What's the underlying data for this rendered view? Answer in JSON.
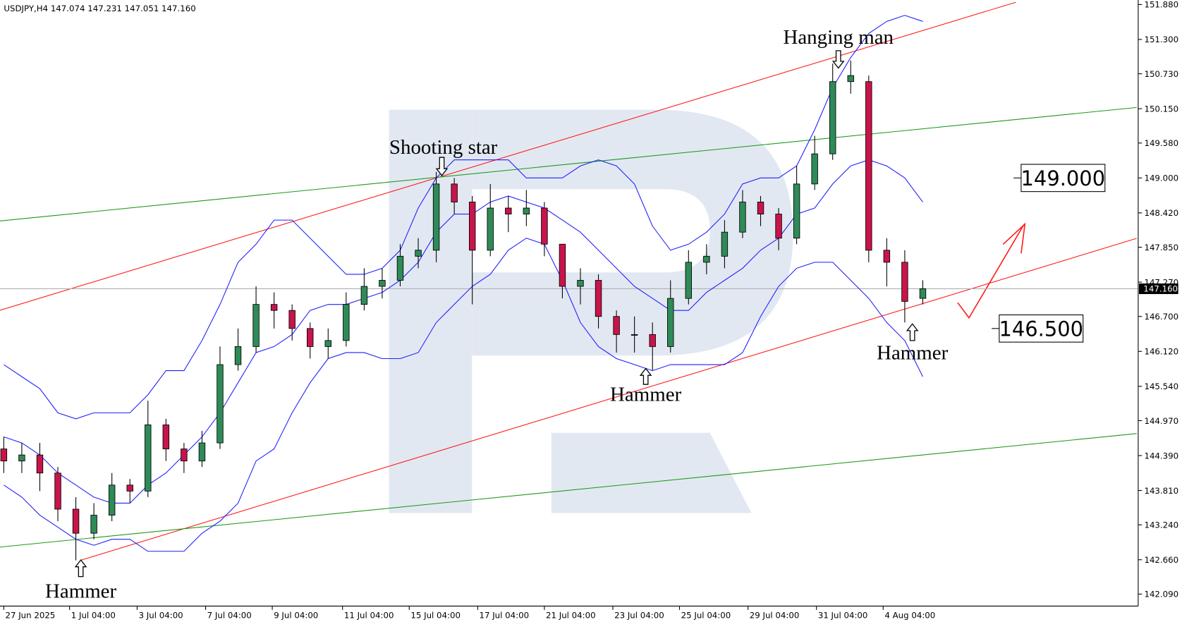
{
  "chart_data": {
    "type": "candlestick",
    "header": "USDJPY,H4  147.074 147.231 147.051 147.160",
    "xlim": [
      -0.21,
      62.87
    ],
    "ylim": [
      141.89,
      151.955
    ],
    "yticks": [
      {
        "value": 151.88,
        "label": "151.880"
      },
      {
        "value": 151.3,
        "label": "151.300"
      },
      {
        "value": 150.73,
        "label": "150.730"
      },
      {
        "value": 150.15,
        "label": "150.150"
      },
      {
        "value": 149.58,
        "label": "149.580"
      },
      {
        "value": 149.0,
        "label": "149.000"
      },
      {
        "value": 148.42,
        "label": "148.420"
      },
      {
        "value": 147.85,
        "label": "147.850"
      },
      {
        "value": 147.27,
        "label": "147.270"
      },
      {
        "value": 146.7,
        "label": "146.700"
      },
      {
        "value": 146.12,
        "label": "146.120"
      },
      {
        "value": 145.54,
        "label": "145.540"
      },
      {
        "value": 144.97,
        "label": "144.970"
      },
      {
        "value": 144.39,
        "label": "144.390"
      },
      {
        "value": 143.81,
        "label": "143.810"
      },
      {
        "value": 143.24,
        "label": "143.240"
      },
      {
        "value": 142.66,
        "label": "142.660"
      },
      {
        "value": 142.09,
        "label": "142.090"
      }
    ],
    "xticks": [
      {
        "value": 0,
        "label": "27 Jun 2025"
      },
      {
        "value": 3.65,
        "label": "1 Jul 04:00"
      },
      {
        "value": 7.4,
        "label": "3 Jul 04:00"
      },
      {
        "value": 11.2,
        "label": "7 Jul 04:00"
      },
      {
        "value": 14.9,
        "label": "9 Jul 04:00"
      },
      {
        "value": 18.8,
        "label": "11 Jul 04:00"
      },
      {
        "value": 22.5,
        "label": "15 Jul 04:00"
      },
      {
        "value": 26.3,
        "label": "17 Jul 04:00"
      },
      {
        "value": 30.0,
        "label": "21 Jul 04:00"
      },
      {
        "value": 33.8,
        "label": "23 Jul 04:00"
      },
      {
        "value": 37.5,
        "label": "25 Jul 04:00"
      },
      {
        "value": 41.3,
        "label": "29 Jul 04:00"
      },
      {
        "value": 45.1,
        "label": "31 Jul 04:00"
      },
      {
        "value": 48.8,
        "label": "4 Aug 04:00"
      }
    ],
    "up_color": "#2e8b57",
    "down_color": "#c8144a",
    "open": [
      144.5,
      144.3,
      144.4,
      144.1,
      143.5,
      143.1,
      143.4,
      143.9,
      143.8,
      144.9,
      144.5,
      144.3,
      144.6,
      145.9,
      146.2,
      146.9,
      146.8,
      146.5,
      146.2,
      146.3,
      146.9,
      147.2,
      147.3,
      147.7,
      147.8,
      148.9,
      148.6,
      147.8,
      148.5,
      148.4,
      148.5,
      147.9,
      147.2,
      147.3,
      146.7,
      146.4,
      146.4,
      146.2,
      147.0,
      147.6,
      147.7,
      148.1,
      148.6,
      148.4,
      148.0,
      148.9,
      149.4,
      150.6,
      150.6,
      147.8,
      147.6,
      147.0
    ],
    "high": [
      144.7,
      144.6,
      144.6,
      144.2,
      143.7,
      143.6,
      144.1,
      144.0,
      145.3,
      145.0,
      144.6,
      144.8,
      146.2,
      146.5,
      147.2,
      147.1,
      146.9,
      146.6,
      146.5,
      147.1,
      147.5,
      147.5,
      147.9,
      148.0,
      149.1,
      149.0,
      148.7,
      148.9,
      148.7,
      148.8,
      148.6,
      147.9,
      147.5,
      147.4,
      146.8,
      146.7,
      146.6,
      147.3,
      147.8,
      147.9,
      148.3,
      148.8,
      148.7,
      148.5,
      149.2,
      149.7,
      150.9,
      150.95,
      150.7,
      148.0,
      147.8,
      147.3
    ],
    "low": [
      144.1,
      144.1,
      143.8,
      143.3,
      142.65,
      143.0,
      143.3,
      143.6,
      143.7,
      144.3,
      144.1,
      144.2,
      144.5,
      145.8,
      146.1,
      146.5,
      146.3,
      146.0,
      146.0,
      146.2,
      146.8,
      147.0,
      147.2,
      147.5,
      147.6,
      148.4,
      146.9,
      147.7,
      148.1,
      148.2,
      147.7,
      147.0,
      146.9,
      146.5,
      146.1,
      146.1,
      145.8,
      146.1,
      146.9,
      147.4,
      147.5,
      148.0,
      148.2,
      147.8,
      147.9,
      148.8,
      149.3,
      150.4,
      147.6,
      147.2,
      146.6,
      146.9
    ],
    "close": [
      144.3,
      144.4,
      144.1,
      143.5,
      143.1,
      143.4,
      143.9,
      143.8,
      144.9,
      144.5,
      144.3,
      144.6,
      145.9,
      146.2,
      146.9,
      146.8,
      146.5,
      146.2,
      146.3,
      146.9,
      147.2,
      147.3,
      147.7,
      147.8,
      148.9,
      148.6,
      147.8,
      148.5,
      148.4,
      148.5,
      147.9,
      147.2,
      147.3,
      146.7,
      146.4,
      146.4,
      146.2,
      147.0,
      147.6,
      147.7,
      148.1,
      148.6,
      148.4,
      148.0,
      148.9,
      149.4,
      150.6,
      150.7,
      147.8,
      147.6,
      146.95,
      147.16
    ],
    "bands": [
      {
        "color": "#1f1fff",
        "values": [
          145.9,
          145.7,
          145.5,
          145.1,
          145.0,
          145.1,
          145.1,
          145.1,
          145.4,
          145.8,
          145.8,
          146.3,
          146.9,
          147.6,
          147.9,
          148.3,
          148.3,
          148.0,
          147.7,
          147.4,
          147.4,
          147.5,
          147.8,
          148.5,
          149.0,
          149.3,
          149.3,
          149.3,
          149.3,
          149.0,
          149.0,
          149.0,
          149.2,
          149.3,
          149.2,
          148.9,
          148.2,
          147.8,
          147.9,
          148.1,
          148.4,
          148.9,
          149.0,
          149.0,
          149.2,
          149.8,
          150.5,
          151.0,
          151.4,
          151.6,
          151.7,
          151.6
        ]
      },
      {
        "color": "#1f1fff",
        "values": [
          144.7,
          144.6,
          144.4,
          144.1,
          143.9,
          143.7,
          143.6,
          143.6,
          143.9,
          144.1,
          144.4,
          144.7,
          145.1,
          145.6,
          146.1,
          146.2,
          146.4,
          146.8,
          146.9,
          146.9,
          147.0,
          147.1,
          147.3,
          147.6,
          148.1,
          148.4,
          148.4,
          148.6,
          148.7,
          148.6,
          148.5,
          148.3,
          148.1,
          147.8,
          147.5,
          147.2,
          147.0,
          146.8,
          146.8,
          147.1,
          147.3,
          147.5,
          147.8,
          148.0,
          148.4,
          148.5,
          148.9,
          149.2,
          149.3,
          149.2,
          149.0,
          148.6
        ]
      },
      {
        "color": "#1f1fff",
        "values": [
          143.9,
          143.7,
          143.4,
          143.2,
          143.0,
          142.9,
          143.0,
          143.0,
          142.8,
          142.8,
          142.8,
          143.1,
          143.3,
          143.6,
          144.3,
          144.5,
          145.1,
          145.6,
          146.0,
          146.1,
          146.1,
          146.0,
          146.0,
          146.1,
          146.6,
          146.9,
          147.2,
          147.4,
          147.8,
          148.0,
          147.9,
          147.3,
          146.6,
          146.2,
          146.0,
          145.9,
          145.8,
          145.9,
          145.9,
          145.9,
          145.9,
          146.1,
          146.7,
          147.2,
          147.5,
          147.6,
          147.6,
          147.3,
          147.0,
          146.6,
          146.3,
          145.7
        ]
      }
    ],
    "current_price": {
      "value": 147.16,
      "label": "147.160"
    },
    "annotations": [
      "Shooting star",
      "Hanging man",
      "Hammer",
      "Hammer",
      "Hammer"
    ],
    "levels": [
      {
        "value": 149.0,
        "label": "149.000"
      },
      {
        "value": 146.5,
        "label": "146.500"
      }
    ]
  }
}
